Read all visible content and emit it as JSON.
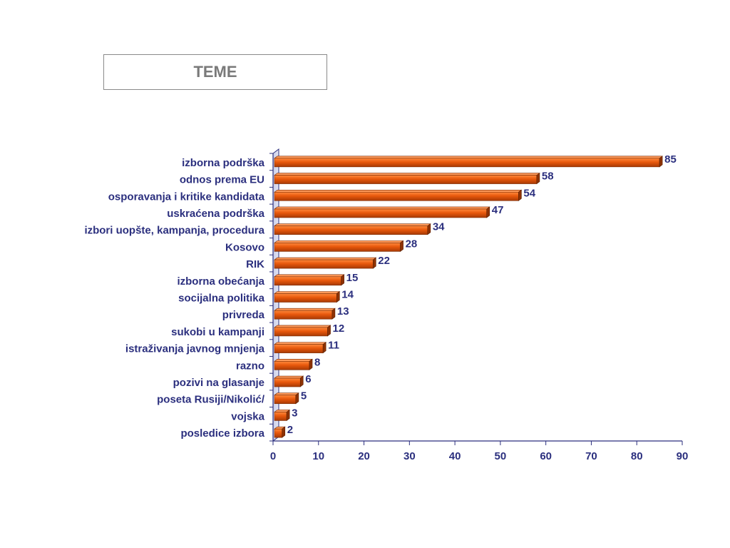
{
  "chart_data": {
    "type": "bar",
    "orientation": "horizontal",
    "title": "TEME",
    "categories": [
      "izborna podrška",
      "odnos prema EU",
      "osporavanja i kritike kandidata",
      "uskraćena podrška",
      "izbori uopšte, kampanja, procedura",
      "Kosovo",
      "RIK",
      "izborna obećanja",
      "socijalna politika",
      "privreda",
      "sukobi u kampanji",
      "istraživanja javnog mnjenja",
      "razno",
      "pozivi na glasanje",
      "poseta Rusiji/Nikolić/",
      "vojska",
      "posledice izbora"
    ],
    "values": [
      85,
      58,
      54,
      47,
      34,
      28,
      22,
      15,
      14,
      13,
      12,
      11,
      8,
      6,
      5,
      3,
      2
    ],
    "xlim": [
      0,
      90
    ],
    "xticks": [
      0,
      10,
      20,
      30,
      40,
      50,
      60,
      70,
      80,
      90
    ],
    "bar_color": "#e8580c",
    "text_color": "#2b2f7e",
    "grid": false,
    "legend": "none"
  }
}
